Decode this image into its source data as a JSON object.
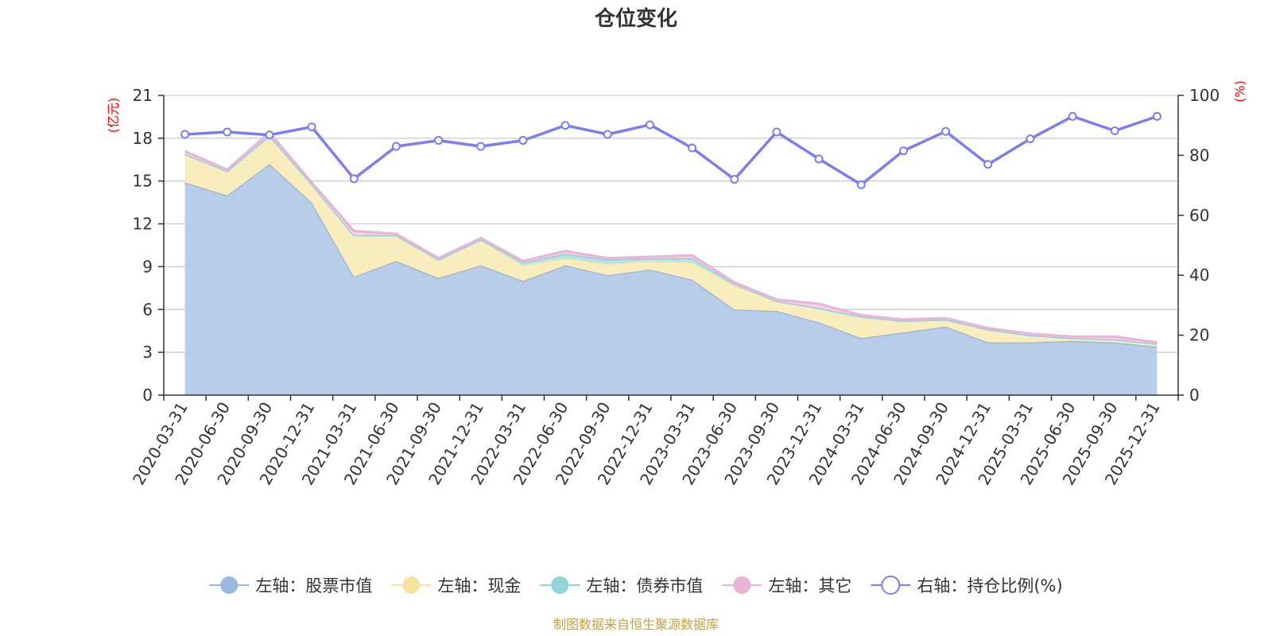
{
  "chart_data": {
    "type": "area",
    "title": "仓位变化",
    "left_axis_unit": "(亿元)",
    "right_axis_unit": "(%)",
    "ylim_left": [
      0,
      21
    ],
    "ylim_right": [
      0,
      100
    ],
    "left_ticks": [
      0,
      3,
      6,
      9,
      12,
      15,
      18,
      21
    ],
    "right_ticks": [
      0,
      20,
      40,
      60,
      80,
      100
    ],
    "categories": [
      "2020-03-31",
      "2020-06-30",
      "2020-09-30",
      "2020-12-31",
      "2021-03-31",
      "2021-06-30",
      "2021-09-30",
      "2021-12-31",
      "2022-03-31",
      "2022-06-30",
      "2022-09-30",
      "2022-12-31",
      "2023-03-31",
      "2023-06-30",
      "2023-09-30",
      "2023-12-31",
      "2024-03-31",
      "2024-06-30",
      "2024-09-30",
      "2024-12-31",
      "2025-03-31",
      "2025-06-30",
      "2025-09-30",
      "2025-12-31"
    ],
    "series": [
      {
        "name": "左轴：股票市值",
        "axis": "left",
        "kind": "stacked-area",
        "color": "#9db8e0",
        "fill": "#b8cdea",
        "values": [
          14.9,
          14.0,
          16.2,
          13.5,
          8.3,
          9.4,
          8.2,
          9.1,
          8.0,
          9.1,
          8.4,
          8.8,
          8.1,
          6.0,
          5.9,
          5.1,
          4.0,
          4.4,
          4.8,
          3.7,
          3.7,
          3.8,
          3.7,
          3.4
        ]
      },
      {
        "name": "左轴：现金",
        "axis": "left",
        "kind": "stacked-area",
        "color": "#f5e4a0",
        "fill": "#faedbd",
        "values": [
          2.0,
          1.7,
          2.0,
          1.3,
          2.9,
          1.8,
          1.3,
          1.8,
          1.1,
          0.5,
          0.8,
          0.6,
          1.2,
          1.7,
          0.7,
          1.0,
          1.5,
          0.8,
          0.5,
          0.9,
          0.5,
          0.2,
          0.2,
          0.2
        ]
      },
      {
        "name": "左轴：债券市值",
        "axis": "left",
        "kind": "stacked-area",
        "color": "#92d3d5",
        "fill": "#b6e3e4",
        "values": [
          0,
          0,
          0,
          0,
          0,
          0,
          0,
          0,
          0.2,
          0.3,
          0.3,
          0.2,
          0.3,
          0.1,
          0,
          0,
          0,
          0,
          0,
          0,
          0,
          0,
          0,
          0
        ]
      },
      {
        "name": "左轴：其它",
        "axis": "left",
        "kind": "stacked-area",
        "color": "#e8b4d8",
        "fill": "#f2d0e6",
        "values": [
          0.2,
          0.1,
          0.2,
          0.1,
          0.3,
          0.1,
          0.1,
          0.1,
          0.1,
          0.2,
          0.1,
          0.1,
          0.2,
          0.1,
          0.1,
          0.3,
          0.1,
          0.1,
          0.1,
          0.1,
          0.1,
          0.1,
          0.2,
          0.1
        ]
      },
      {
        "name": "右轴：持仓比例(%)",
        "axis": "right",
        "kind": "line",
        "color": "#7b7ef0",
        "values": [
          87,
          87.8,
          86.8,
          89.5,
          72.2,
          83,
          85,
          83,
          85,
          90,
          87,
          90.2,
          82.5,
          72,
          87.8,
          78.8,
          70.2,
          81.5,
          88,
          77,
          85.5,
          93,
          88.2,
          93
        ]
      }
    ],
    "grid": true,
    "legend_position": "bottom"
  },
  "footer": {
    "source": "制图数据来自恒生聚源数据库"
  }
}
